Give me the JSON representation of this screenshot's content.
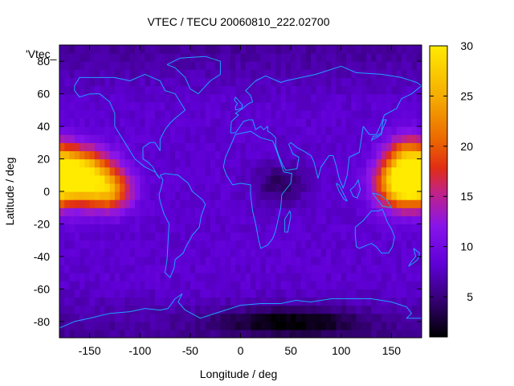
{
  "chart_data": {
    "type": "heatmap",
    "title": "VTEC / TECU 20060810_222.02700",
    "xlabel": "Longitude / deg",
    "ylabel": "Latitude / deg",
    "legend_label": "'Vtec_",
    "xlim": [
      -180,
      180
    ],
    "ylim": [
      -90,
      90
    ],
    "xticks": [
      -150,
      -100,
      -50,
      0,
      50,
      100,
      150
    ],
    "xtick_labels": [
      "-150",
      "-100",
      "-50",
      "0",
      "50",
      "100",
      "150"
    ],
    "yticks": [
      -80,
      -60,
      -40,
      -20,
      0,
      20,
      40,
      60,
      80
    ],
    "ytick_labels": [
      "-80",
      "-60",
      "-40",
      "-20",
      "0",
      "20",
      "40",
      "60",
      "80"
    ],
    "colorbar": {
      "range": [
        1,
        30
      ],
      "ticks": [
        5,
        10,
        15,
        20,
        25,
        30
      ],
      "tick_labels": [
        "5",
        "10",
        "15",
        "20",
        "25",
        "30"
      ],
      "colormap": "black-purple-red-orange-yellow"
    },
    "grid": false,
    "grid_step_deg": 5,
    "background_value": 8,
    "field_features": [
      {
        "description": "Pacific maximum",
        "lon": -165,
        "lat": 10,
        "lon_width": 35,
        "lat_width": 16,
        "peak": 26
      },
      {
        "description": "Pacific maximum (eastern lobe)",
        "lon": -130,
        "lat": 0,
        "lon_width": 22,
        "lat_width": 12,
        "peak": 12
      },
      {
        "description": "Western Pacific maximum",
        "lon": 160,
        "lat": 5,
        "lon_width": 25,
        "lat_width": 15,
        "peak": 20
      },
      {
        "description": "Western Pacific maximum (north lobe)",
        "lon": 165,
        "lat": 25,
        "lon_width": 20,
        "lat_width": 12,
        "peak": 8
      },
      {
        "description": "Southern polar minimum",
        "lon": 50,
        "lat": -80,
        "lon_width": 70,
        "lat_width": 8,
        "peak": -6
      },
      {
        "description": "Indian Ocean minimum",
        "lon": 40,
        "lat": 5,
        "lon_width": 25,
        "lat_width": 12,
        "peak": -4
      }
    ],
    "coastlines": [
      {
        "name": "North America",
        "points": [
          [
            -165,
            65
          ],
          [
            -160,
            70
          ],
          [
            -140,
            70
          ],
          [
            -125,
            70
          ],
          [
            -110,
            68
          ],
          [
            -95,
            72
          ],
          [
            -80,
            68
          ],
          [
            -75,
            62
          ],
          [
            -65,
            60
          ],
          [
            -60,
            55
          ],
          [
            -55,
            50
          ],
          [
            -65,
            45
          ],
          [
            -70,
            42
          ],
          [
            -75,
            38
          ],
          [
            -80,
            32
          ],
          [
            -80,
            25
          ],
          [
            -85,
            30
          ],
          [
            -90,
            30
          ],
          [
            -97,
            27
          ],
          [
            -97,
            20
          ],
          [
            -92,
            18
          ],
          [
            -87,
            15
          ],
          [
            -83,
            10
          ],
          [
            -80,
            8
          ],
          [
            -85,
            12
          ],
          [
            -95,
            15
          ],
          [
            -105,
            20
          ],
          [
            -110,
            25
          ],
          [
            -115,
            30
          ],
          [
            -120,
            35
          ],
          [
            -125,
            40
          ],
          [
            -125,
            48
          ],
          [
            -130,
            55
          ],
          [
            -140,
            60
          ],
          [
            -150,
            60
          ],
          [
            -160,
            58
          ],
          [
            -165,
            62
          ],
          [
            -165,
            65
          ]
        ]
      },
      {
        "name": "South America",
        "points": [
          [
            -80,
            10
          ],
          [
            -75,
            11
          ],
          [
            -62,
            10
          ],
          [
            -52,
            5
          ],
          [
            -48,
            0
          ],
          [
            -38,
            -5
          ],
          [
            -35,
            -8
          ],
          [
            -39,
            -15
          ],
          [
            -41,
            -22
          ],
          [
            -48,
            -27
          ],
          [
            -55,
            -35
          ],
          [
            -57,
            -38
          ],
          [
            -65,
            -42
          ],
          [
            -66,
            -47
          ],
          [
            -70,
            -53
          ],
          [
            -75,
            -50
          ],
          [
            -73,
            -42
          ],
          [
            -72,
            -30
          ],
          [
            -71,
            -20
          ],
          [
            -76,
            -14
          ],
          [
            -80,
            -6
          ],
          [
            -81,
            -2
          ],
          [
            -79,
            2
          ],
          [
            -77,
            7
          ],
          [
            -80,
            10
          ]
        ]
      },
      {
        "name": "Africa",
        "points": [
          [
            -17,
            15
          ],
          [
            -15,
            21
          ],
          [
            -10,
            28
          ],
          [
            -5,
            35
          ],
          [
            10,
            37
          ],
          [
            20,
            33
          ],
          [
            32,
            31
          ],
          [
            34,
            28
          ],
          [
            43,
            12
          ],
          [
            51,
            11
          ],
          [
            50,
            5
          ],
          [
            41,
            -2
          ],
          [
            40,
            -10
          ],
          [
            35,
            -24
          ],
          [
            32,
            -29
          ],
          [
            27,
            -33
          ],
          [
            20,
            -35
          ],
          [
            18,
            -30
          ],
          [
            15,
            -20
          ],
          [
            12,
            -12
          ],
          [
            10,
            -2
          ],
          [
            10,
            4
          ],
          [
            0,
            5
          ],
          [
            -8,
            4
          ],
          [
            -14,
            10
          ],
          [
            -17,
            15
          ]
        ]
      },
      {
        "name": "Eurasia",
        "points": [
          [
            -10,
            36
          ],
          [
            -9,
            43
          ],
          [
            -2,
            47
          ],
          [
            -5,
            48
          ],
          [
            2,
            51
          ],
          [
            8,
            54
          ],
          [
            12,
            55
          ],
          [
            10,
            59
          ],
          [
            5,
            62
          ],
          [
            15,
            68
          ],
          [
            25,
            71
          ],
          [
            40,
            67
          ],
          [
            45,
            68
          ],
          [
            60,
            70
          ],
          [
            75,
            72
          ],
          [
            100,
            77
          ],
          [
            115,
            73
          ],
          [
            140,
            72
          ],
          [
            160,
            70
          ],
          [
            175,
            67
          ],
          [
            180,
            65
          ],
          [
            170,
            60
          ],
          [
            160,
            57
          ],
          [
            155,
            51
          ],
          [
            143,
            47
          ],
          [
            140,
            42
          ],
          [
            135,
            35
          ],
          [
            128,
            35
          ],
          [
            122,
            40
          ],
          [
            120,
            32
          ],
          [
            118,
            24
          ],
          [
            108,
            21
          ],
          [
            106,
            10
          ],
          [
            102,
            2
          ],
          [
            98,
            8
          ],
          [
            95,
            16
          ],
          [
            92,
            22
          ],
          [
            88,
            22
          ],
          [
            80,
            15
          ],
          [
            77,
            8
          ],
          [
            73,
            18
          ],
          [
            70,
            22
          ],
          [
            62,
            25
          ],
          [
            56,
            27
          ],
          [
            50,
            30
          ],
          [
            48,
            29
          ],
          [
            52,
            23
          ],
          [
            58,
            21
          ],
          [
            56,
            14
          ],
          [
            45,
            13
          ],
          [
            42,
            16
          ],
          [
            38,
            22
          ],
          [
            35,
            28
          ],
          [
            35,
            33
          ],
          [
            30,
            36
          ],
          [
            27,
            37
          ],
          [
            27,
            40
          ],
          [
            23,
            38
          ],
          [
            20,
            40
          ],
          [
            15,
            38
          ],
          [
            12,
            44
          ],
          [
            8,
            44
          ],
          [
            3,
            43
          ],
          [
            -5,
            36
          ],
          [
            -10,
            36
          ]
        ]
      },
      {
        "name": "Australia",
        "points": [
          [
            114,
            -22
          ],
          [
            122,
            -18
          ],
          [
            130,
            -12
          ],
          [
            137,
            -12
          ],
          [
            141,
            -11
          ],
          [
            143,
            -14
          ],
          [
            146,
            -19
          ],
          [
            150,
            -23
          ],
          [
            153,
            -28
          ],
          [
            151,
            -34
          ],
          [
            147,
            -38
          ],
          [
            140,
            -38
          ],
          [
            135,
            -34
          ],
          [
            130,
            -32
          ],
          [
            118,
            -35
          ],
          [
            115,
            -34
          ],
          [
            114,
            -26
          ],
          [
            114,
            -22
          ]
        ]
      },
      {
        "name": "Greenland",
        "points": [
          [
            -73,
            78
          ],
          [
            -60,
            82
          ],
          [
            -35,
            83
          ],
          [
            -20,
            80
          ],
          [
            -20,
            72
          ],
          [
            -30,
            68
          ],
          [
            -42,
            60
          ],
          [
            -50,
            63
          ],
          [
            -55,
            70
          ],
          [
            -65,
            76
          ],
          [
            -73,
            78
          ]
        ]
      },
      {
        "name": "Antarctica",
        "points": [
          [
            -180,
            -84
          ],
          [
            -165,
            -80
          ],
          [
            -150,
            -78
          ],
          [
            -130,
            -75
          ],
          [
            -110,
            -74
          ],
          [
            -95,
            -72
          ],
          [
            -80,
            -73
          ],
          [
            -72,
            -72
          ],
          [
            -65,
            -66
          ],
          [
            -58,
            -63
          ],
          [
            -62,
            -68
          ],
          [
            -55,
            -73
          ],
          [
            -40,
            -78
          ],
          [
            -20,
            -74
          ],
          [
            0,
            -70
          ],
          [
            20,
            -69
          ],
          [
            40,
            -69
          ],
          [
            55,
            -67
          ],
          [
            70,
            -68
          ],
          [
            90,
            -66
          ],
          [
            110,
            -66
          ],
          [
            130,
            -66
          ],
          [
            150,
            -68
          ],
          [
            165,
            -71
          ],
          [
            170,
            -75
          ],
          [
            165,
            -78
          ],
          [
            180,
            -78
          ]
        ]
      },
      {
        "name": "Great Britain",
        "points": [
          [
            -5,
            50
          ],
          [
            1,
            51
          ],
          [
            2,
            53
          ],
          [
            -2,
            56
          ],
          [
            -5,
            58
          ],
          [
            -6,
            56
          ],
          [
            -3,
            54
          ],
          [
            -5,
            52
          ],
          [
            -5,
            50
          ]
        ]
      },
      {
        "name": "Japan",
        "points": [
          [
            130,
            31
          ],
          [
            132,
            34
          ],
          [
            135,
            34
          ],
          [
            140,
            36
          ],
          [
            141,
            41
          ],
          [
            142,
            44
          ],
          [
            145,
            44
          ],
          [
            141,
            38
          ],
          [
            140,
            35
          ],
          [
            135,
            33
          ],
          [
            131,
            32
          ],
          [
            130,
            31
          ]
        ]
      },
      {
        "name": "Madagascar",
        "points": [
          [
            44,
            -25
          ],
          [
            47,
            -25
          ],
          [
            50,
            -15
          ],
          [
            49,
            -12
          ],
          [
            44,
            -17
          ],
          [
            44,
            -25
          ]
        ]
      },
      {
        "name": "New Zealand",
        "points": [
          [
            172,
            -35
          ],
          [
            178,
            -38
          ],
          [
            176,
            -42
          ],
          [
            172,
            -44
          ],
          [
            167,
            -46
          ],
          [
            170,
            -43
          ],
          [
            174,
            -40
          ],
          [
            172,
            -35
          ]
        ]
      },
      {
        "name": "Borneo",
        "points": [
          [
            109,
            1
          ],
          [
            112,
            -3
          ],
          [
            116,
            -4
          ],
          [
            119,
            1
          ],
          [
            117,
            7
          ],
          [
            113,
            3
          ],
          [
            109,
            1
          ]
        ]
      },
      {
        "name": "Sumatra",
        "points": [
          [
            95,
            5
          ],
          [
            98,
            4
          ],
          [
            106,
            -6
          ],
          [
            103,
            -5
          ],
          [
            98,
            0
          ],
          [
            95,
            5
          ]
        ]
      },
      {
        "name": "New Guinea",
        "points": [
          [
            131,
            -1
          ],
          [
            138,
            -2
          ],
          [
            145,
            -5
          ],
          [
            150,
            -10
          ],
          [
            141,
            -9
          ],
          [
            136,
            -5
          ],
          [
            131,
            -1
          ]
        ]
      }
    ]
  }
}
